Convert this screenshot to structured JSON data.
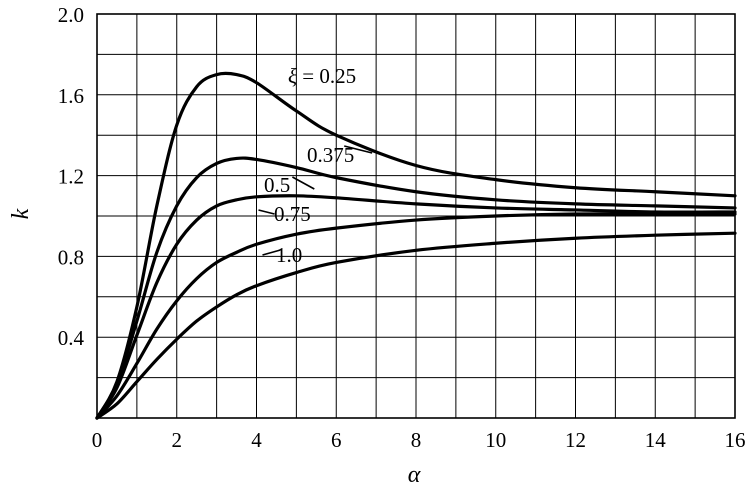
{
  "chart_data": {
    "type": "line",
    "title": "",
    "xlabel": "α",
    "ylabel": "k",
    "xlim": [
      0,
      16
    ],
    "ylim": [
      0,
      2.0
    ],
    "x_ticks": [
      "0",
      "2",
      "4",
      "6",
      "8",
      "10",
      "12",
      "14",
      "16"
    ],
    "y_ticks": [
      "0.4",
      "0.8",
      "1.2",
      "1.6",
      "2.0"
    ],
    "grid": true,
    "x_grid_step": 1,
    "y_grid_step": 0.2,
    "series": [
      {
        "label_symbol": "ξ",
        "label_rest": " = 0.25",
        "x": [
          0,
          0.5,
          1,
          1.5,
          2,
          2.5,
          3,
          3.5,
          4,
          5,
          6,
          8,
          10,
          12,
          14,
          16
        ],
        "y": [
          0,
          0.18,
          0.55,
          1.05,
          1.45,
          1.64,
          1.7,
          1.7,
          1.66,
          1.52,
          1.4,
          1.25,
          1.18,
          1.14,
          1.12,
          1.1
        ]
      },
      {
        "label": "0.375",
        "x": [
          0,
          0.5,
          1,
          1.5,
          2,
          2.5,
          3,
          3.5,
          4,
          5,
          6,
          8,
          10,
          12,
          14,
          16
        ],
        "y": [
          0,
          0.17,
          0.48,
          0.82,
          1.05,
          1.19,
          1.26,
          1.285,
          1.28,
          1.24,
          1.19,
          1.12,
          1.08,
          1.06,
          1.05,
          1.04
        ]
      },
      {
        "label": "0.5",
        "x": [
          0,
          0.5,
          1,
          1.5,
          2,
          2.5,
          3,
          3.5,
          4,
          5,
          6,
          8,
          10,
          12,
          14,
          16
        ],
        "y": [
          0,
          0.15,
          0.41,
          0.67,
          0.86,
          0.98,
          1.05,
          1.08,
          1.095,
          1.1,
          1.09,
          1.06,
          1.04,
          1.03,
          1.02,
          1.02
        ]
      },
      {
        "label": "0.75",
        "x": [
          0,
          0.5,
          1,
          1.5,
          2,
          2.5,
          3,
          3.5,
          4,
          5,
          6,
          8,
          10,
          12,
          14,
          16
        ],
        "y": [
          0,
          0.11,
          0.27,
          0.44,
          0.58,
          0.69,
          0.77,
          0.82,
          0.86,
          0.91,
          0.94,
          0.98,
          1.0,
          1.01,
          1.01,
          1.01
        ]
      },
      {
        "label": "1.0",
        "x": [
          0,
          0.5,
          1,
          1.5,
          2,
          2.5,
          3,
          3.5,
          4,
          5,
          6,
          8,
          10,
          12,
          14,
          16
        ],
        "y": [
          0,
          0.07,
          0.18,
          0.29,
          0.39,
          0.48,
          0.55,
          0.61,
          0.655,
          0.72,
          0.77,
          0.83,
          0.865,
          0.89,
          0.905,
          0.915
        ]
      }
    ]
  }
}
